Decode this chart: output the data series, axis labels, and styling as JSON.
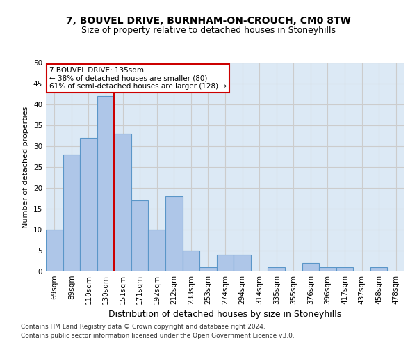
{
  "title": "7, BOUVEL DRIVE, BURNHAM-ON-CROUCH, CM0 8TW",
  "subtitle": "Size of property relative to detached houses in Stoneyhills",
  "xlabel": "Distribution of detached houses by size in Stoneyhills",
  "ylabel": "Number of detached properties",
  "categories": [
    "69sqm",
    "89sqm",
    "110sqm",
    "130sqm",
    "151sqm",
    "171sqm",
    "192sqm",
    "212sqm",
    "233sqm",
    "253sqm",
    "274sqm",
    "294sqm",
    "314sqm",
    "335sqm",
    "355sqm",
    "376sqm",
    "396sqm",
    "417sqm",
    "437sqm",
    "458sqm",
    "478sqm"
  ],
  "values": [
    10,
    28,
    32,
    42,
    33,
    17,
    10,
    18,
    5,
    1,
    4,
    4,
    0,
    1,
    0,
    2,
    1,
    1,
    0,
    1,
    0
  ],
  "bar_color": "#aec6e8",
  "bar_edge_color": "#5a96c8",
  "reference_line_x": 3.5,
  "reference_line_color": "#cc0000",
  "annotation_text": "7 BOUVEL DRIVE: 135sqm\n← 38% of detached houses are smaller (80)\n61% of semi-detached houses are larger (128) →",
  "annotation_box_color": "#ffffff",
  "annotation_box_edge_color": "#cc0000",
  "ylim": [
    0,
    50
  ],
  "yticks": [
    0,
    5,
    10,
    15,
    20,
    25,
    30,
    35,
    40,
    45,
    50
  ],
  "grid_color": "#cccccc",
  "background_color": "#dce9f5",
  "footer_line1": "Contains HM Land Registry data © Crown copyright and database right 2024.",
  "footer_line2": "Contains public sector information licensed under the Open Government Licence v3.0.",
  "title_fontsize": 10,
  "subtitle_fontsize": 9,
  "xlabel_fontsize": 9,
  "ylabel_fontsize": 8,
  "tick_fontsize": 7.5,
  "footer_fontsize": 6.5
}
